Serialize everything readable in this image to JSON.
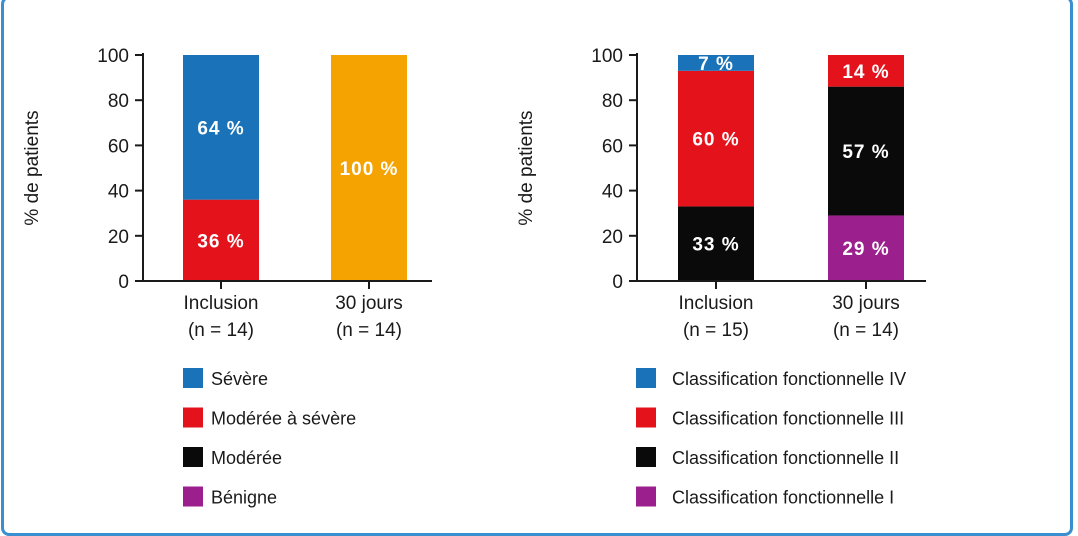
{
  "chart_data": [
    {
      "type": "bar",
      "stacked": true,
      "ylabel": "% de patients",
      "ylim": [
        0,
        100
      ],
      "yticks": [
        "0",
        "20",
        "40",
        "60",
        "80",
        "100"
      ],
      "categories": [
        {
          "label": "Inclusion",
          "sublabel": "(n = 14)"
        },
        {
          "label": "30 jours",
          "sublabel": "(n = 14)"
        }
      ],
      "series": [
        {
          "name": "Bénigne",
          "color": "#9b1f8c",
          "values": [
            0,
            0
          ],
          "labels": [
            "",
            ""
          ]
        },
        {
          "name": "Modérée",
          "color": "#0a0a0a",
          "values": [
            0,
            0
          ],
          "labels": [
            "",
            ""
          ]
        },
        {
          "name": "Modérée à sévère",
          "color": "#e3121b",
          "values": [
            36,
            0
          ],
          "labels": [
            "36 %",
            ""
          ]
        },
        {
          "name": "Sévère",
          "color": "#1a73b8",
          "values": [
            64,
            0
          ],
          "labels": [
            "64 %",
            ""
          ]
        },
        {
          "name": "",
          "color": "#f5a300",
          "values": [
            0,
            100
          ],
          "labels": [
            "",
            "100 %"
          ]
        }
      ],
      "legend": [
        "Sévère",
        "Modérée à sévère",
        "Modérée",
        "Bénigne"
      ],
      "legend_colors": [
        "#1a73b8",
        "#e3121b",
        "#0a0a0a",
        "#9b1f8c"
      ],
      "legend_placement": "bottom"
    },
    {
      "type": "bar",
      "stacked": true,
      "ylabel": "% de patients",
      "ylim": [
        0,
        100
      ],
      "yticks": [
        "0",
        "20",
        "40",
        "60",
        "80",
        "100"
      ],
      "categories": [
        {
          "label": "Inclusion",
          "sublabel": "(n = 15)"
        },
        {
          "label": "30 jours",
          "sublabel": "(n = 14)"
        }
      ],
      "series": [
        {
          "name": "Classification fonctionnelle I",
          "color": "#9b1f8c",
          "values": [
            0,
            29
          ],
          "labels": [
            "",
            "29 %"
          ]
        },
        {
          "name": "Classification fonctionnelle II",
          "color": "#0a0a0a",
          "values": [
            33,
            57
          ],
          "labels": [
            "33 %",
            "57 %"
          ]
        },
        {
          "name": "Classification fonctionnelle III",
          "color": "#e3121b",
          "values": [
            60,
            14
          ],
          "labels": [
            "60 %",
            "14 %"
          ]
        },
        {
          "name": "Classification fonctionnelle IV",
          "color": "#1a73b8",
          "values": [
            7,
            0
          ],
          "labels": [
            "7 %",
            ""
          ]
        }
      ],
      "legend": [
        "Classification fonctionnelle IV",
        "Classification fonctionnelle III",
        "Classification fonctionnelle II",
        "Classification fonctionnelle I"
      ],
      "legend_colors": [
        "#1a73b8",
        "#e3121b",
        "#0a0a0a",
        "#9b1f8c"
      ],
      "legend_placement": "bottom"
    }
  ]
}
